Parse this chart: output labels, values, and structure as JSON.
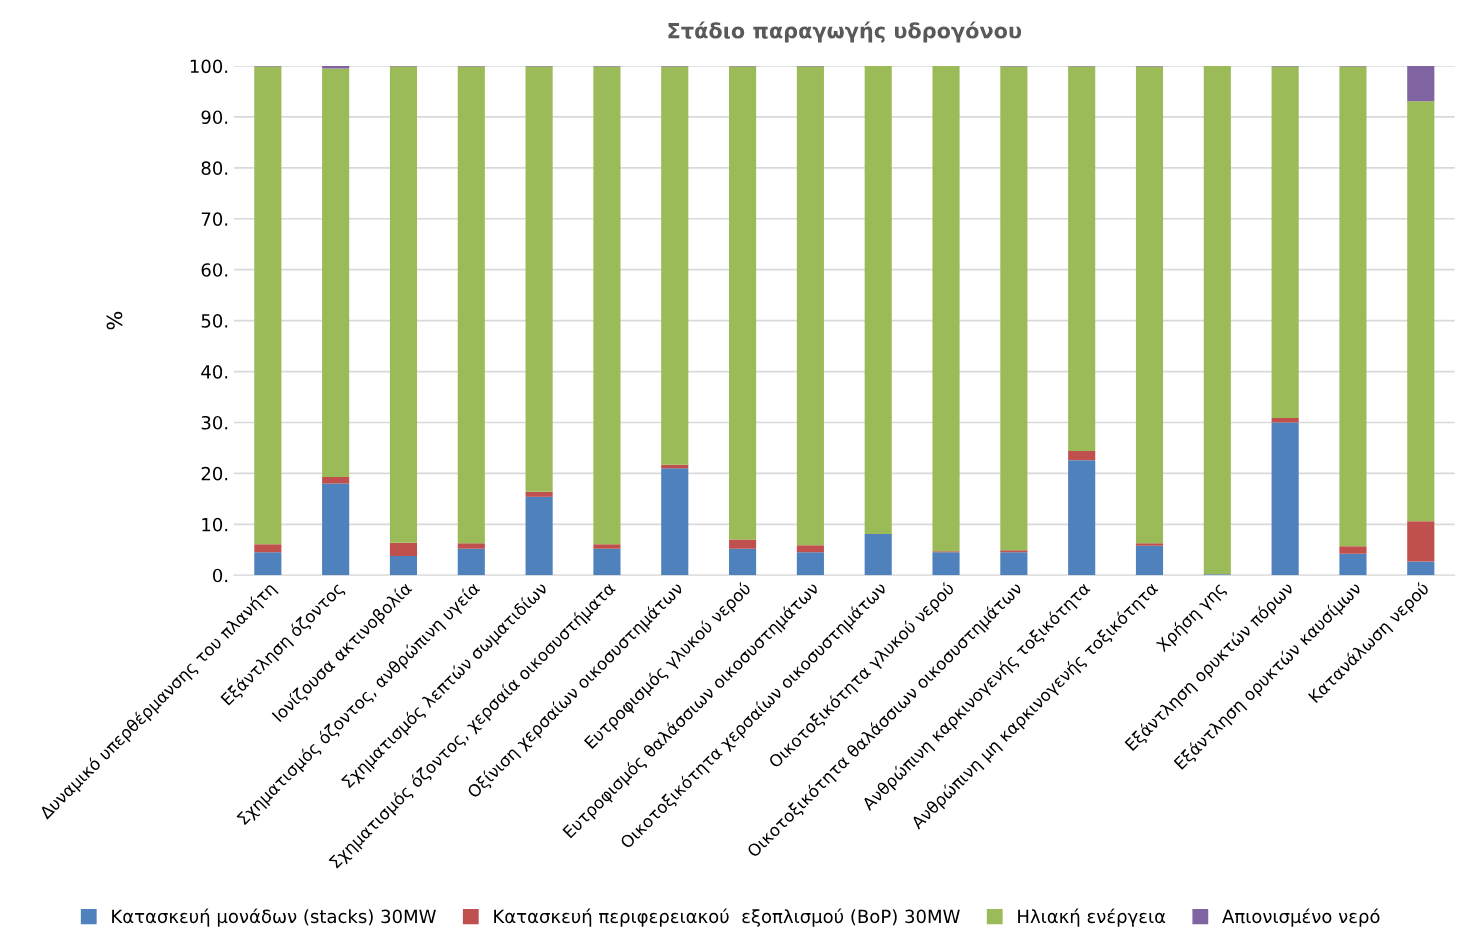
{
  "chart_data": {
    "type": "bar",
    "stacked": true,
    "title": "Στάδιο παραγωγής υδρογόνου",
    "ylabel": "%",
    "categories": [
      "Δυναμικό υπερθέρμανσης του πλανήτη",
      "Εξάντληση όζοντος",
      "Ιονίζουσα ακτινοβολία",
      "Σχηματισμός όζοντος, ανθρώπινη υγεία",
      "Σχηματισμός λεπτών σωματιδίων",
      "Σχηματισμός όζοντος, χερσαία οικοσυστήματα",
      "Οξίνιση χερσαίων οικοσυστημάτων",
      "Ευτροφισμός γλυκού νερού",
      "Ευτροφισμός θαλάσσιων οικοσυστημάτων",
      "Οικοτοξικότητα χερσαίων οικοσυστημάτων",
      "Οικοτοξικότητα γλυκού νερού",
      "Οικοτοξικότητα θαλάσσιων οικοσυστημάτων",
      "Ανθρώπινη καρκινογενής τοξικότητα",
      "Ανθρώπινη μη καρκινογενής τοξικότητα",
      "Χρήση γης",
      "Εξάντληση ορυκτών πόρων",
      "Εξάντληση ορυκτών καυσίμων",
      "Κατανάλωση νερού"
    ],
    "series": [
      {
        "name": "Κατασκευή μονάδων (stacks) 30MW",
        "color": "#4f81bd",
        "values": [
          4.5,
          18,
          3.8,
          5.2,
          15.4,
          5.2,
          21,
          5.2,
          4.5,
          8.1,
          4.5,
          4.5,
          22.6,
          5.8,
          0.2,
          30,
          4.2,
          2.7
        ]
      },
      {
        "name": "Κατασκευή περιφερειακού  εξοπλισμού (BoP) 30MW",
        "color": "#c0504d",
        "values": [
          1.6,
          1.3,
          2.6,
          1.1,
          1.0,
          0.9,
          0.7,
          1.8,
          1.4,
          null,
          0.2,
          0.4,
          1.8,
          0.5,
          0,
          0.9,
          1.5,
          7.9
        ]
      },
      {
        "name": "Ηλιακή ενέργεια",
        "color": "#9bbb59",
        "values": [
          93.8,
          80.2,
          93.5,
          93.6,
          83.5,
          93.8,
          78.2,
          92.9,
          94.0,
          91.9,
          95.3,
          95.0,
          75.5,
          93.6,
          99.8,
          69.0,
          94.2,
          82.5
        ]
      },
      {
        "name": "Απιονισμένο νερό",
        "color": "#8064a2",
        "values": [
          0.1,
          0.5,
          0.1,
          0.1,
          0.1,
          0.1,
          0.1,
          0.1,
          0.1,
          0,
          0,
          0.1,
          0.1,
          0.1,
          0,
          0.1,
          0.1,
          6.9
        ]
      }
    ],
    "ylim": [
      0,
      100
    ],
    "yticks": [
      {
        "value": 0,
        "label": "0."
      },
      {
        "value": 10,
        "label": "10."
      },
      {
        "value": 20,
        "label": "20."
      },
      {
        "value": 30,
        "label": "30."
      },
      {
        "value": 40,
        "label": "40."
      },
      {
        "value": 50,
        "label": "50."
      },
      {
        "value": 60,
        "label": "60."
      },
      {
        "value": 70,
        "label": "70."
      },
      {
        "value": 80,
        "label": "80."
      },
      {
        "value": 90,
        "label": "90."
      },
      {
        "value": 100,
        "label": "100."
      }
    ],
    "grid": "y",
    "legend": "bottom"
  }
}
